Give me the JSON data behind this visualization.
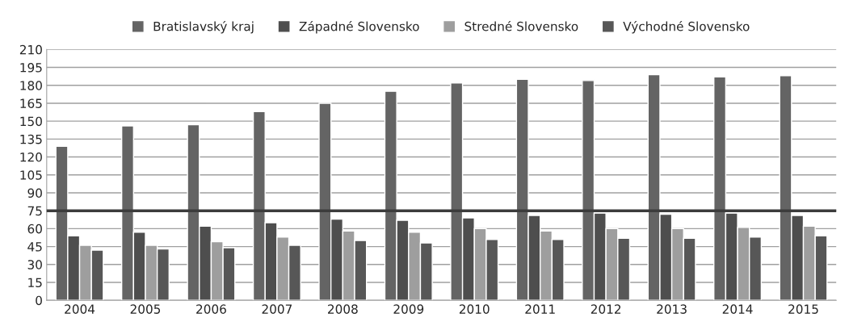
{
  "chart_data": {
    "type": "bar",
    "categories": [
      "2004",
      "2005",
      "2006",
      "2007",
      "2008",
      "2009",
      "2010",
      "2011",
      "2012",
      "2013",
      "2014",
      "2015"
    ],
    "series": [
      {
        "name": "Bratislavský kraj",
        "color": "#646464",
        "values": [
          129,
          146,
          147,
          158,
          165,
          175,
          182,
          185,
          184,
          189,
          187,
          188
        ]
      },
      {
        "name": "Západné Slovensko",
        "color": "#4e4e4e",
        "values": [
          54,
          57,
          62,
          65,
          68,
          67,
          69,
          71,
          73,
          72,
          73,
          71
        ]
      },
      {
        "name": "Stredné Slovensko",
        "color": "#9e9e9e",
        "values": [
          46,
          46,
          49,
          53,
          58,
          57,
          60,
          58,
          60,
          60,
          61,
          62
        ]
      },
      {
        "name": "Východné Slovensko",
        "color": "#575757",
        "values": [
          42,
          43,
          44,
          46,
          50,
          48,
          51,
          51,
          52,
          52,
          53,
          54
        ]
      }
    ],
    "ylim": [
      0,
      210
    ],
    "yticks": [
      0,
      15,
      30,
      45,
      60,
      75,
      90,
      105,
      120,
      135,
      150,
      165,
      180,
      195,
      210
    ],
    "ref_lines": [
      {
        "axis": "y",
        "value": 75,
        "color": "#3c3c3c"
      }
    ],
    "grid": "y",
    "legend": "top"
  }
}
